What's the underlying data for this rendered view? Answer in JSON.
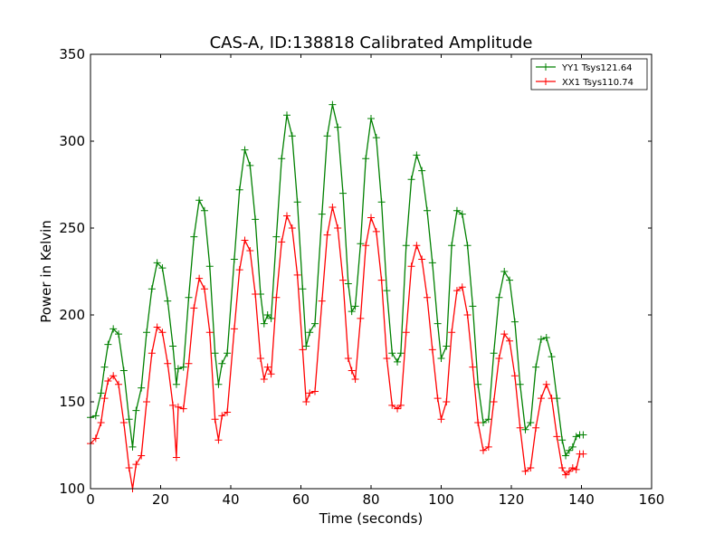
{
  "chart_data": {
    "type": "line",
    "title": "CAS-A, ID:138818 Calibrated Amplitude",
    "xlabel": "Time (seconds)",
    "ylabel": "Power in Kelvin",
    "xlim": [
      0,
      160
    ],
    "ylim": [
      100,
      350
    ],
    "xticks": [
      0,
      20,
      40,
      60,
      80,
      100,
      120,
      140,
      160
    ],
    "yticks": [
      100,
      150,
      200,
      250,
      300,
      350
    ],
    "grid": false,
    "legend_position": "top-right",
    "series": [
      {
        "name": "YY1 Tsys121.64",
        "color": "#008000",
        "marker": "+",
        "points": [
          [
            0,
            141
          ],
          [
            1.5,
            142
          ],
          [
            3,
            155
          ],
          [
            4,
            170
          ],
          [
            5,
            183
          ],
          [
            6.5,
            192
          ],
          [
            8,
            189
          ],
          [
            9.5,
            168
          ],
          [
            11,
            140
          ],
          [
            12,
            124
          ],
          [
            13,
            145
          ],
          [
            14.5,
            158
          ],
          [
            16,
            190
          ],
          [
            17.5,
            215
          ],
          [
            19,
            230
          ],
          [
            20.5,
            227
          ],
          [
            22,
            208
          ],
          [
            23.5,
            182
          ],
          [
            24.5,
            160
          ],
          [
            25,
            169
          ],
          [
            26.5,
            170
          ],
          [
            28,
            210
          ],
          [
            29.5,
            245
          ],
          [
            31,
            266
          ],
          [
            32.5,
            260
          ],
          [
            34,
            228
          ],
          [
            35.5,
            178
          ],
          [
            36.5,
            160
          ],
          [
            37.5,
            172
          ],
          [
            39,
            178
          ],
          [
            41,
            232
          ],
          [
            42.5,
            272
          ],
          [
            44,
            295
          ],
          [
            45.5,
            286
          ],
          [
            47,
            255
          ],
          [
            48.5,
            212
          ],
          [
            49.5,
            195
          ],
          [
            50.5,
            200
          ],
          [
            51.5,
            198
          ],
          [
            53,
            245
          ],
          [
            54.5,
            290
          ],
          [
            56,
            315
          ],
          [
            57.5,
            303
          ],
          [
            59,
            265
          ],
          [
            60.5,
            215
          ],
          [
            61.5,
            182
          ],
          [
            62.5,
            190
          ],
          [
            64,
            195
          ],
          [
            66,
            258
          ],
          [
            67.5,
            303
          ],
          [
            69,
            321
          ],
          [
            70.5,
            308
          ],
          [
            72,
            270
          ],
          [
            73.5,
            218
          ],
          [
            74.5,
            202
          ],
          [
            75.5,
            205
          ],
          [
            77,
            241
          ],
          [
            78.5,
            290
          ],
          [
            80,
            313
          ],
          [
            81.5,
            302
          ],
          [
            83,
            265
          ],
          [
            84.5,
            214
          ],
          [
            86,
            178
          ],
          [
            87.5,
            173
          ],
          [
            88.5,
            178
          ],
          [
            90,
            240
          ],
          [
            91.5,
            278
          ],
          [
            93,
            292
          ],
          [
            94.5,
            283
          ],
          [
            96,
            260
          ],
          [
            97.5,
            230
          ],
          [
            99,
            195
          ],
          [
            100,
            175
          ],
          [
            101.5,
            182
          ],
          [
            103,
            240
          ],
          [
            104.5,
            260
          ],
          [
            106,
            258
          ],
          [
            107.5,
            240
          ],
          [
            109,
            205
          ],
          [
            110.5,
            160
          ],
          [
            112,
            138
          ],
          [
            113.5,
            140
          ],
          [
            115,
            178
          ],
          [
            116.5,
            210
          ],
          [
            118,
            225
          ],
          [
            119.5,
            220
          ],
          [
            121,
            196
          ],
          [
            122.5,
            160
          ],
          [
            124,
            134
          ],
          [
            125.5,
            138
          ],
          [
            127,
            170
          ],
          [
            128.5,
            186
          ],
          [
            130,
            187
          ],
          [
            131.5,
            176
          ],
          [
            133,
            152
          ],
          [
            134.5,
            128
          ],
          [
            135.5,
            119
          ],
          [
            136.5,
            122
          ],
          [
            137.5,
            124
          ],
          [
            138.5,
            130
          ],
          [
            139.5,
            131
          ],
          [
            140.5,
            131
          ]
        ]
      },
      {
        "name": "XX1 Tsys110.74",
        "color": "#ff0000",
        "marker": "+",
        "points": [
          [
            0,
            126
          ],
          [
            1.5,
            129
          ],
          [
            3,
            138
          ],
          [
            4,
            152
          ],
          [
            5,
            162
          ],
          [
            6.5,
            165
          ],
          [
            8,
            160
          ],
          [
            9.5,
            138
          ],
          [
            11,
            112
          ],
          [
            12,
            100
          ],
          [
            13,
            114
          ],
          [
            14.5,
            119
          ],
          [
            16,
            150
          ],
          [
            17.5,
            178
          ],
          [
            19,
            193
          ],
          [
            20.5,
            190
          ],
          [
            22,
            172
          ],
          [
            23.5,
            148
          ],
          [
            24.5,
            118
          ],
          [
            25,
            147
          ],
          [
            26.5,
            146
          ],
          [
            28,
            172
          ],
          [
            29.5,
            204
          ],
          [
            31,
            221
          ],
          [
            32.5,
            215
          ],
          [
            34,
            190
          ],
          [
            35.5,
            140
          ],
          [
            36.5,
            128
          ],
          [
            37.5,
            142
          ],
          [
            39,
            144
          ],
          [
            41,
            192
          ],
          [
            42.5,
            226
          ],
          [
            44,
            243
          ],
          [
            45.5,
            237
          ],
          [
            47,
            212
          ],
          [
            48.5,
            175
          ],
          [
            49.5,
            163
          ],
          [
            50.5,
            170
          ],
          [
            51.5,
            166
          ],
          [
            53,
            210
          ],
          [
            54.5,
            242
          ],
          [
            56,
            257
          ],
          [
            57.5,
            250
          ],
          [
            59,
            223
          ],
          [
            60.5,
            180
          ],
          [
            61.5,
            150
          ],
          [
            62.5,
            155
          ],
          [
            64,
            156
          ],
          [
            66,
            208
          ],
          [
            67.5,
            246
          ],
          [
            69,
            262
          ],
          [
            70.5,
            250
          ],
          [
            72,
            220
          ],
          [
            73.5,
            175
          ],
          [
            74.5,
            168
          ],
          [
            75.5,
            163
          ],
          [
            77,
            198
          ],
          [
            78.5,
            240
          ],
          [
            80,
            256
          ],
          [
            81.5,
            248
          ],
          [
            83,
            220
          ],
          [
            84.5,
            175
          ],
          [
            86,
            148
          ],
          [
            87.5,
            146
          ],
          [
            88.5,
            148
          ],
          [
            90,
            190
          ],
          [
            91.5,
            228
          ],
          [
            93,
            240
          ],
          [
            94.5,
            232
          ],
          [
            96,
            210
          ],
          [
            97.5,
            180
          ],
          [
            99,
            152
          ],
          [
            100,
            140
          ],
          [
            101.5,
            150
          ],
          [
            103,
            190
          ],
          [
            104.5,
            214
          ],
          [
            106,
            216
          ],
          [
            107.5,
            200
          ],
          [
            109,
            170
          ],
          [
            110.5,
            138
          ],
          [
            112,
            122
          ],
          [
            113.5,
            124
          ],
          [
            115,
            150
          ],
          [
            116.5,
            175
          ],
          [
            118,
            189
          ],
          [
            119.5,
            185
          ],
          [
            121,
            165
          ],
          [
            122.5,
            135
          ],
          [
            124,
            110
          ],
          [
            125.5,
            112
          ],
          [
            127,
            135
          ],
          [
            128.5,
            152
          ],
          [
            130,
            160
          ],
          [
            131.5,
            152
          ],
          [
            133,
            130
          ],
          [
            134.5,
            112
          ],
          [
            135.5,
            108
          ],
          [
            136.5,
            110
          ],
          [
            137.5,
            112
          ],
          [
            138.5,
            111
          ],
          [
            139.5,
            120
          ],
          [
            140.5,
            120
          ]
        ]
      }
    ]
  }
}
